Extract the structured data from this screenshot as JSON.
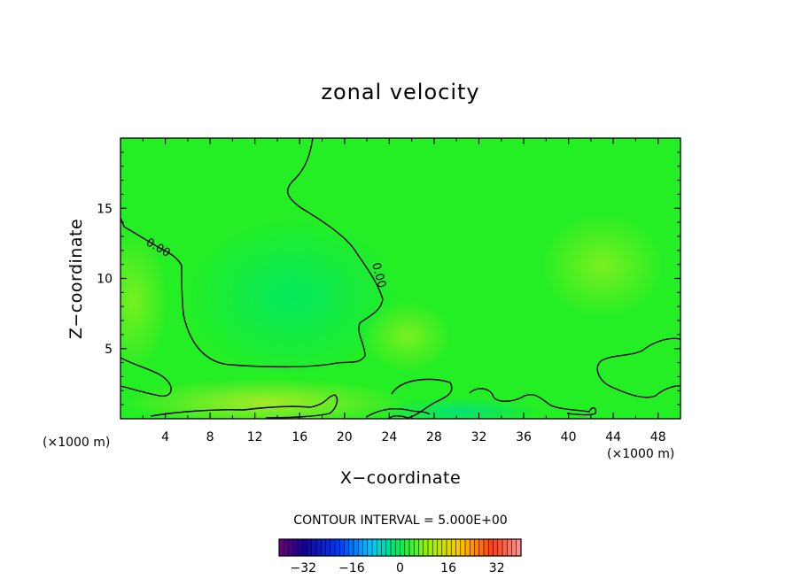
{
  "chart_data": {
    "type": "heatmap",
    "title": "zonal velocity",
    "xlabel": "X−coordinate",
    "ylabel": "Z−coordinate",
    "x_unit": "(×1000 m)",
    "y_unit": "(×1000 m)",
    "xlim": [
      0,
      50
    ],
    "ylim": [
      0,
      20
    ],
    "x_ticks": [
      4,
      8,
      12,
      16,
      20,
      24,
      28,
      32,
      36,
      40,
      44,
      48
    ],
    "y_ticks": [
      5,
      10,
      15
    ],
    "contour_interval_text": "CONTOUR INTERVAL = 5.000E+00",
    "contour_labels": [
      "0.00",
      "0.00"
    ],
    "colorbar": {
      "min": -40,
      "max": 40,
      "ticks": [
        -32,
        -16,
        0,
        16,
        32
      ],
      "tick_labels": [
        "−32",
        "−16",
        "0",
        "16",
        "32"
      ]
    },
    "colors": {
      "field_base": "#22ee22",
      "frame": "#000000",
      "contour": "#000000"
    }
  }
}
